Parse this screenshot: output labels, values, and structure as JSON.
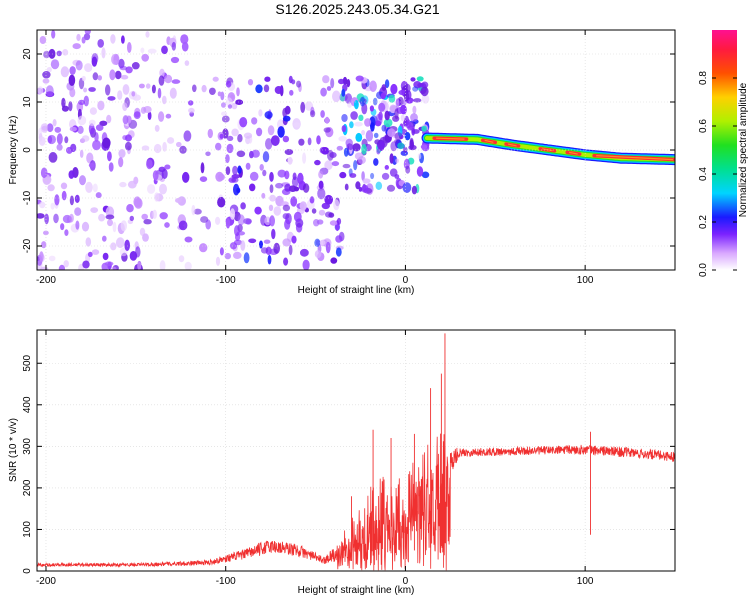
{
  "title": "S126.2025.243.05.34.G21",
  "colors": {
    "snr_line": "#f03030",
    "axis": "#000000",
    "grid": "#d8d8d8",
    "spec_base": "#7a22ff"
  },
  "chart_data": [
    {
      "type": "heatmap",
      "xlabel": "Height of straight line (km)",
      "ylabel": "Frequency (Hz)",
      "xlim": [
        -205,
        150
      ],
      "ylim": [
        -25,
        25
      ],
      "xticks": [
        -200,
        -100,
        0,
        100
      ],
      "yticks": [
        -20,
        -10,
        0,
        10,
        20
      ],
      "tick_labels_x": [
        "-200",
        "-100",
        "0",
        "100"
      ],
      "tick_labels_y": [
        "-20",
        "-10",
        "0",
        "10",
        "20"
      ],
      "colorbar": {
        "label": "Normalized spectral amplitude",
        "range": [
          0,
          1
        ],
        "ticks": [
          0,
          0.2,
          0.4,
          0.6,
          0.8
        ],
        "tick_labels": [
          "0.0",
          "0.2",
          "0.4",
          "0.6",
          "0.8"
        ]
      },
      "ridge": {
        "description": "dominant frequency track",
        "x": [
          12,
          40,
          60,
          80,
          100,
          120,
          150
        ],
        "y": [
          2.5,
          2.2,
          1.0,
          0.0,
          -1.0,
          -1.7,
          -2.0
        ],
        "amplitude": 0.85
      }
    },
    {
      "type": "line",
      "xlabel": "Height of straight line (km)",
      "ylabel": "SNR (10 * v/v)",
      "xlim": [
        -205,
        150
      ],
      "ylim": [
        0,
        580
      ],
      "xticks": [
        -200,
        -100,
        0,
        100
      ],
      "yticks": [
        0,
        100,
        200,
        300,
        400,
        500
      ],
      "tick_labels_x": [
        "-200",
        "-100",
        "0",
        "100"
      ],
      "tick_labels_y": [
        "0",
        "100",
        "200",
        "300",
        "400",
        "500"
      ],
      "envelope": {
        "x": [
          -205,
          -150,
          -110,
          -90,
          -75,
          -60,
          -45,
          -35,
          -20,
          -10,
          0,
          10,
          20,
          25,
          30,
          50,
          75,
          100,
          125,
          150
        ],
        "y": [
          15,
          15,
          20,
          40,
          60,
          50,
          25,
          60,
          120,
          140,
          150,
          180,
          200,
          260,
          285,
          287,
          290,
          292,
          285,
          275
        ],
        "noise": [
          4,
          4,
          6,
          12,
          18,
          15,
          8,
          30,
          80,
          100,
          90,
          110,
          150,
          40,
          10,
          10,
          10,
          12,
          12,
          12
        ]
      },
      "peaks": [
        {
          "x": 22,
          "y": 572
        },
        {
          "x": 20,
          "y": 475
        },
        {
          "x": 14,
          "y": 440
        },
        {
          "x": -18,
          "y": 340
        },
        {
          "x": -8,
          "y": 320
        },
        {
          "x": 5,
          "y": 330
        },
        {
          "x": 103,
          "y": 335
        },
        {
          "x": -30,
          "y": 180
        }
      ]
    }
  ]
}
